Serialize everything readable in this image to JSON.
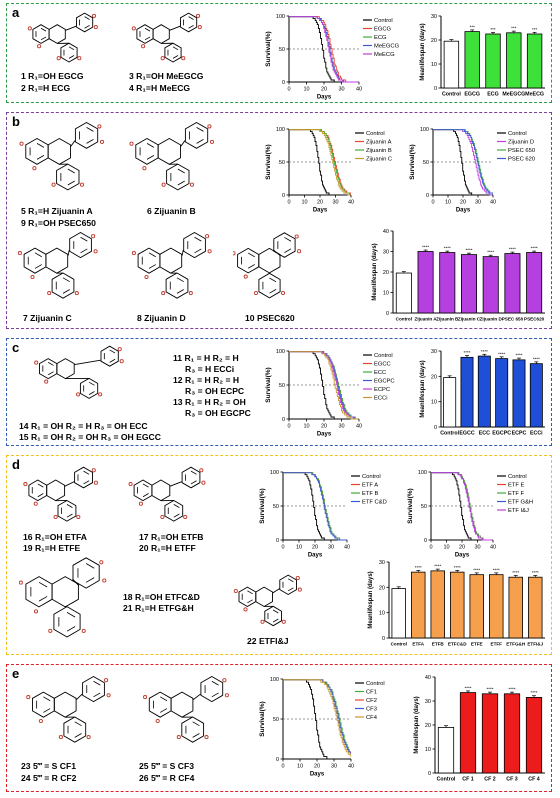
{
  "colors": {
    "a": "#2e9a45",
    "b": "#7b3f98",
    "c": "#2f5fae",
    "d": "#f2c11b",
    "e": "#e01f26"
  },
  "panels": [
    {
      "id": "a",
      "label": "a",
      "captions": [
        "1  R₁=OH  EGCG",
        "2  R₁=H    ECG",
        "3  R₁=OH  MeEGCG",
        "4  R₁=H    MeECG"
      ],
      "chart_data": [
        {
          "type": "line",
          "xlabel": "Days",
          "ylabel": "Survival(%)",
          "xlim": [
            0,
            40
          ],
          "ylim": [
            0,
            100
          ],
          "xticks": [
            0,
            10,
            20,
            30,
            40
          ],
          "yticks": [
            0,
            50,
            100
          ],
          "series": [
            {
              "name": "Control",
              "color": "#000000",
              "median": 19
            },
            {
              "name": "EGCG",
              "color": "#e8412c",
              "median": 24
            },
            {
              "name": "ECG",
              "color": "#3fae3a",
              "median": 23
            },
            {
              "name": "MeEGCG",
              "color": "#3b5bd6",
              "median": 23
            },
            {
              "name": "MeECG",
              "color": "#c33be0",
              "median": 22.5
            }
          ]
        },
        {
          "type": "bar",
          "ylabel": "Meanlifespan (days)",
          "ylim": [
            0,
            30
          ],
          "yticks": [
            0,
            10,
            20,
            30
          ],
          "bar_color": "#3ee03a",
          "categories": [
            "Control",
            "EGCG",
            "ECG",
            "MeEGCG",
            "MeECG"
          ],
          "values": [
            19.5,
            23.5,
            22.5,
            23,
            22.5
          ],
          "stars": [
            "",
            "***",
            "***",
            "***",
            "***"
          ]
        }
      ]
    },
    {
      "id": "b",
      "label": "b",
      "captions": [
        "5  R₁=H     Zijuanin A",
        "9  R₁=OH  PSEC650",
        "6  Zijuanin B",
        "7  Zijuanin C",
        "8  Zijuanin D",
        "10  PSEC620"
      ],
      "chart_data": [
        {
          "type": "line",
          "xlabel": "Days",
          "ylabel": "Survival(%)",
          "xlim": [
            0,
            40
          ],
          "ylim": [
            0,
            100
          ],
          "xticks": [
            0,
            10,
            20,
            30,
            40
          ],
          "yticks": [
            0,
            50,
            100
          ],
          "series": [
            {
              "name": "Control",
              "color": "#000000",
              "median": 19
            },
            {
              "name": "Zijuanin A",
              "color": "#e8412c",
              "median": 29.5
            },
            {
              "name": "Zijuanin B",
              "color": "#3fae3a",
              "median": 29
            },
            {
              "name": "Zijuanin C",
              "color": "#c99a25",
              "median": 28
            }
          ]
        },
        {
          "type": "line",
          "xlabel": "Days",
          "ylabel": "Survival(%)",
          "xlim": [
            0,
            40
          ],
          "ylim": [
            0,
            100
          ],
          "xticks": [
            0,
            10,
            20,
            30,
            40
          ],
          "yticks": [
            0,
            50,
            100
          ],
          "series": [
            {
              "name": "Control",
              "color": "#000000",
              "median": 19
            },
            {
              "name": "Zijuanin D",
              "color": "#c33be0",
              "median": 28
            },
            {
              "name": "PSEC 650",
              "color": "#3fae3a",
              "median": 30
            },
            {
              "name": "PSEC 620",
              "color": "#3b5bd6",
              "median": 29.5
            }
          ]
        },
        {
          "type": "bar",
          "ylabel": "Meanlifespan (days)",
          "ylim": [
            0,
            40
          ],
          "yticks": [
            0,
            10,
            20,
            30,
            40
          ],
          "bar_color": "#b63fe0",
          "categories": [
            "Control",
            "Zijuanin A",
            "Zijuanin B",
            "Zijuanin C",
            "Zijuanin D",
            "PSEC 650",
            "PSEC620"
          ],
          "values": [
            19.5,
            30,
            29.5,
            28.5,
            27.5,
            29,
            29.5
          ],
          "stars": [
            "",
            "****",
            "****",
            "****",
            "****",
            "****",
            "****"
          ]
        }
      ]
    },
    {
      "id": "c",
      "label": "c",
      "captions": [
        "11  R₁ = H  R₂ = H",
        "R₃ = H   ECCi",
        "12  R₁ = H  R₂ = H",
        "R₃ = OH   ECPC",
        "13  R₁ = H  R₂ = OH",
        "R₃ = OH   EGCPC",
        "14  R₁ = OH  R₂ = H  R₃ = OH   ECC",
        "15  R₁ = OH  R₂ = OH  R₃ = OH   EGCC"
      ],
      "chart_data": [
        {
          "type": "line",
          "xlabel": "Days",
          "ylabel": "Survival(%)",
          "xlim": [
            0,
            40
          ],
          "ylim": [
            0,
            100
          ],
          "xticks": [
            0,
            10,
            20,
            30,
            40
          ],
          "yticks": [
            0,
            50,
            100
          ],
          "series": [
            {
              "name": "Control",
              "color": "#000000",
              "median": 19
            },
            {
              "name": "EGCC",
              "color": "#e8412c",
              "median": 28
            },
            {
              "name": "ECC",
              "color": "#3fae3a",
              "median": 28
            },
            {
              "name": "EGCPC",
              "color": "#3b5bd6",
              "median": 27.5
            },
            {
              "name": "ECPC",
              "color": "#c33be0",
              "median": 27
            },
            {
              "name": "ECCi",
              "color": "#c99a25",
              "median": 26
            }
          ]
        },
        {
          "type": "bar",
          "ylabel": "Meanlifespan (days)",
          "ylim": [
            0,
            30
          ],
          "yticks": [
            0,
            10,
            20,
            30
          ],
          "bar_color": "#1f4fd6",
          "categories": [
            "Control",
            "EGCC",
            "ECC",
            "EGCPC",
            "ECPC",
            "ECCi"
          ],
          "values": [
            19.5,
            27.5,
            28,
            27,
            26.5,
            25
          ],
          "stars": [
            "",
            "****",
            "****",
            "****",
            "****",
            "****"
          ]
        }
      ]
    },
    {
      "id": "d",
      "label": "d",
      "captions": [
        "16  R₁=OH   ETFA",
        "19  R₁=H    ETFE",
        "17  R₁=OH   ETFB",
        "20  R₁=H    ETFF",
        "18  R₁=OH  ETFC&D",
        "21  R₁=H    ETFG&H",
        "22  ETFI&J"
      ],
      "chart_data": [
        {
          "type": "line",
          "xlabel": "Days",
          "ylabel": "Survival(%)",
          "xlim": [
            0,
            40
          ],
          "ylim": [
            0,
            100
          ],
          "xticks": [
            0,
            10,
            20,
            30,
            40
          ],
          "yticks": [
            0,
            50,
            100
          ],
          "series": [
            {
              "name": "Control",
              "color": "#000000",
              "median": 19
            },
            {
              "name": "ETF A",
              "color": "#e8412c",
              "median": 26
            },
            {
              "name": "ETF B",
              "color": "#3fae3a",
              "median": 26
            },
            {
              "name": "ETF C&D",
              "color": "#3b5bd6",
              "median": 25.5
            }
          ]
        },
        {
          "type": "line",
          "xlabel": "Days",
          "ylabel": "Survival(%)",
          "xlim": [
            0,
            40
          ],
          "ylim": [
            0,
            100
          ],
          "xticks": [
            0,
            10,
            20,
            30,
            40
          ],
          "yticks": [
            0,
            50,
            100
          ],
          "series": [
            {
              "name": "Control",
              "color": "#000000",
              "median": 19
            },
            {
              "name": "ETF E",
              "color": "#e8412c",
              "median": 25
            },
            {
              "name": "ETF F",
              "color": "#3fae3a",
              "median": 25
            },
            {
              "name": "ETF G&H",
              "color": "#3b5bd6",
              "median": 24.5
            },
            {
              "name": "ETF I&J",
              "color": "#c33be0",
              "median": 24.5
            }
          ]
        },
        {
          "type": "bar",
          "ylabel": "Meanlifespan (days)",
          "ylim": [
            0,
            30
          ],
          "yticks": [
            0,
            10,
            20,
            30
          ],
          "bar_color": "#f6a04d",
          "categories": [
            "Control",
            "ETFA",
            "ETFB",
            "ETFC&D",
            "ETFE",
            "ETFF",
            "ETFG&H",
            "ETFI&J"
          ],
          "values": [
            19.5,
            26,
            26.5,
            26,
            25,
            25,
            24,
            24
          ],
          "stars": [
            "",
            "****",
            "****",
            "****",
            "****",
            "****",
            "****",
            "****"
          ]
        }
      ]
    },
    {
      "id": "e",
      "label": "e",
      "captions": [
        "23  5‴ = S  CF1",
        "24  5‴ = R  CF2",
        "25  5‴ = S  CF3",
        "26  5‴ = R  CF4"
      ],
      "chart_data": [
        {
          "type": "line",
          "xlabel": "Days",
          "ylabel": "Survival(%)",
          "xlim": [
            0,
            40
          ],
          "ylim": [
            0,
            100
          ],
          "xticks": [
            0,
            10,
            20,
            30,
            40
          ],
          "yticks": [
            0,
            50,
            100
          ],
          "series": [
            {
              "name": "Control",
              "color": "#000000",
              "median": 19
            },
            {
              "name": "CF1",
              "color": "#3fae3a",
              "median": 33
            },
            {
              "name": "CF2",
              "color": "#e8412c",
              "median": 32.5
            },
            {
              "name": "CF3",
              "color": "#3b5bd6",
              "median": 32.5
            },
            {
              "name": "CF4",
              "color": "#c99a25",
              "median": 31.5
            }
          ]
        },
        {
          "type": "bar",
          "ylabel": "Meanlifespan (days)",
          "ylim": [
            0,
            40
          ],
          "yticks": [
            0,
            10,
            20,
            30,
            40
          ],
          "bar_color": "#ec1c1c",
          "categories": [
            "Control",
            "CF 1",
            "CF 2",
            "CF 3",
            "CF 4"
          ],
          "values": [
            19,
            33.5,
            33,
            33,
            31.5
          ],
          "stars": [
            "",
            "****",
            "****",
            "****",
            "****"
          ]
        }
      ]
    }
  ]
}
